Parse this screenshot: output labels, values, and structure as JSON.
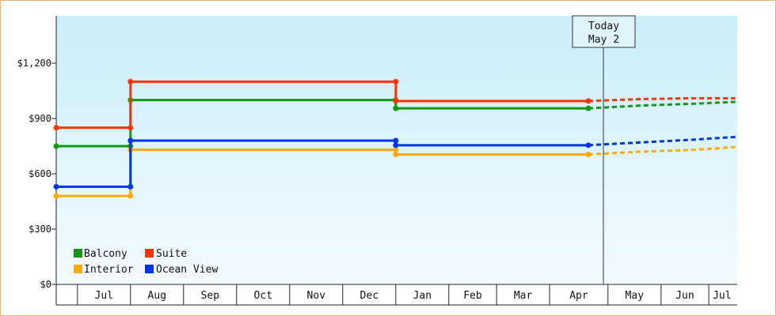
{
  "chart_data": {
    "type": "line",
    "step": true,
    "yaxis": {
      "min": 0,
      "max": 1400,
      "ticks": [
        0,
        300,
        600,
        900,
        1200
      ],
      "tick_labels": [
        "$0",
        "$300",
        "$600",
        "$900",
        "$1,200"
      ]
    },
    "xaxis": {
      "months": [
        "Jul",
        "Aug",
        "Sep",
        "Oct",
        "Nov",
        "Dec",
        "Jan",
        "Feb",
        "Mar",
        "Apr",
        "May",
        "Jun",
        "Jul"
      ],
      "range": [
        0,
        12.8
      ]
    },
    "today": {
      "line1": "Today",
      "line2": "May 2",
      "x": 10.03
    },
    "legend_placement": "bottom-left",
    "series": [
      {
        "name": "Balcony",
        "color": "#119911",
        "steps": [
          [
            0,
            750
          ],
          [
            1.4,
            1000
          ],
          [
            6.4,
            955
          ],
          [
            10.03,
            955
          ]
        ],
        "forecast": [
          [
            10.03,
            955
          ],
          [
            11,
            970
          ],
          [
            12,
            980
          ],
          [
            12.8,
            990
          ]
        ]
      },
      {
        "name": "Suite",
        "color": "#ff3300",
        "steps": [
          [
            0,
            850
          ],
          [
            1.4,
            1100
          ],
          [
            6.4,
            995
          ],
          [
            10.03,
            995
          ]
        ],
        "forecast": [
          [
            10.03,
            995
          ],
          [
            11,
            1005
          ],
          [
            12,
            1010
          ],
          [
            12.8,
            1010
          ]
        ]
      },
      {
        "name": "Interior",
        "color": "#ffaa00",
        "steps": [
          [
            0,
            480
          ],
          [
            1.4,
            730
          ],
          [
            6.4,
            705
          ],
          [
            10.03,
            705
          ]
        ],
        "forecast": [
          [
            10.03,
            705
          ],
          [
            11,
            720
          ],
          [
            12,
            730
          ],
          [
            12.8,
            745
          ]
        ]
      },
      {
        "name": "Ocean View",
        "color": "#0033ee",
        "steps": [
          [
            0,
            530
          ],
          [
            1.4,
            780
          ],
          [
            6.4,
            755
          ],
          [
            10.03,
            755
          ]
        ],
        "forecast": [
          [
            10.03,
            755
          ],
          [
            11,
            770
          ],
          [
            12,
            785
          ],
          [
            12.8,
            800
          ]
        ]
      }
    ]
  },
  "colors": {
    "plot_top": "#c9eefa",
    "plot_bottom": "#f4fbff",
    "frame_border": "#e8b27a"
  }
}
